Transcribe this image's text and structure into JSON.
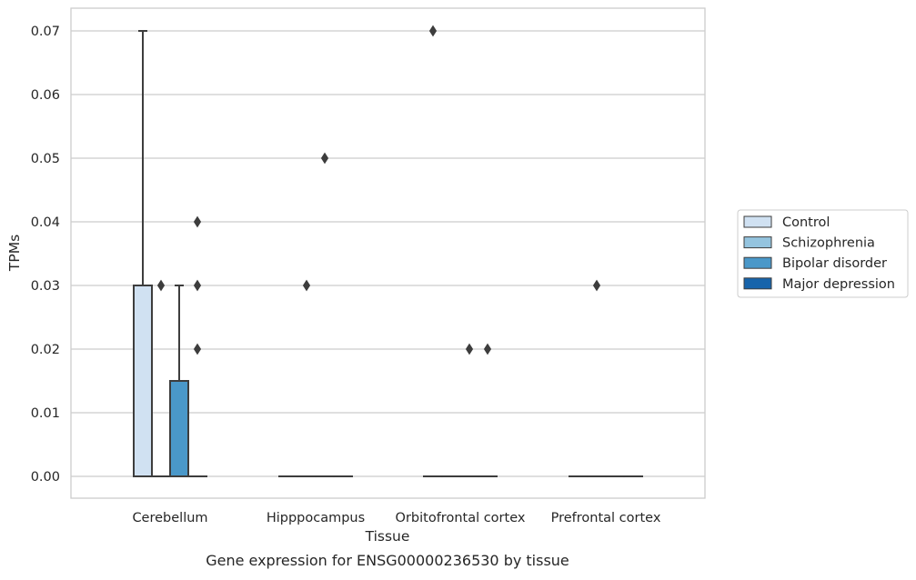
{
  "chart_data": {
    "type": "box",
    "title": "",
    "caption": "Gene expression for ENSG00000236530 by tissue",
    "xlabel": "Tissue",
    "ylabel": "TPMs",
    "ylim": [
      -0.0035,
      0.0735
    ],
    "yticks": [
      0.0,
      0.01,
      0.02,
      0.03,
      0.04,
      0.05,
      0.06,
      0.07
    ],
    "ytick_labels": [
      "0.00",
      "0.01",
      "0.02",
      "0.03",
      "0.04",
      "0.05",
      "0.06",
      "0.07"
    ],
    "categories": [
      "Cerebellum",
      "Hipppocampus",
      "Orbitofrontal cortex",
      "Prefrontal cortex"
    ],
    "grid": "horizontal",
    "legend_position": "right",
    "series": [
      {
        "name": "Control",
        "color": "#d0e1f2",
        "boxes": [
          {
            "q1": 0.0,
            "median": 0.0,
            "q3": 0.03,
            "whisker_low": 0.0,
            "whisker_high": 0.07,
            "outliers": []
          },
          {
            "q1": 0.0,
            "median": 0.0,
            "q3": 0.0,
            "whisker_low": 0.0,
            "whisker_high": 0.0,
            "outliers": []
          },
          {
            "q1": 0.0,
            "median": 0.0,
            "q3": 0.0,
            "whisker_low": 0.0,
            "whisker_high": 0.0,
            "outliers": [
              0.07
            ]
          },
          {
            "q1": 0.0,
            "median": 0.0,
            "q3": 0.0,
            "whisker_low": 0.0,
            "whisker_high": 0.0,
            "outliers": []
          }
        ]
      },
      {
        "name": "Schizophrenia",
        "color": "#94c4df",
        "boxes": [
          {
            "q1": 0.0,
            "median": 0.0,
            "q3": 0.0,
            "whisker_low": 0.0,
            "whisker_high": 0.0,
            "outliers": [
              0.03
            ]
          },
          {
            "q1": 0.0,
            "median": 0.0,
            "q3": 0.0,
            "whisker_low": 0.0,
            "whisker_high": 0.0,
            "outliers": [
              0.03
            ]
          },
          {
            "q1": 0.0,
            "median": 0.0,
            "q3": 0.0,
            "whisker_low": 0.0,
            "whisker_high": 0.0,
            "outliers": []
          },
          {
            "q1": 0.0,
            "median": 0.0,
            "q3": 0.0,
            "whisker_low": 0.0,
            "whisker_high": 0.0,
            "outliers": [
              0.03
            ]
          }
        ]
      },
      {
        "name": "Bipolar disorder",
        "color": "#4a98c9",
        "boxes": [
          {
            "q1": 0.0,
            "median": 0.0,
            "q3": 0.015,
            "whisker_low": 0.0,
            "whisker_high": 0.03,
            "outliers": []
          },
          {
            "q1": 0.0,
            "median": 0.0,
            "q3": 0.0,
            "whisker_low": 0.0,
            "whisker_high": 0.0,
            "outliers": [
              0.05
            ]
          },
          {
            "q1": 0.0,
            "median": 0.0,
            "q3": 0.0,
            "whisker_low": 0.0,
            "whisker_high": 0.0,
            "outliers": [
              0.02
            ]
          },
          {
            "q1": 0.0,
            "median": 0.0,
            "q3": 0.0,
            "whisker_low": 0.0,
            "whisker_high": 0.0,
            "outliers": []
          }
        ]
      },
      {
        "name": "Major depression",
        "color": "#1764ab",
        "boxes": [
          {
            "q1": 0.0,
            "median": 0.0,
            "q3": 0.0,
            "whisker_low": 0.0,
            "whisker_high": 0.0,
            "outliers": [
              0.02,
              0.03,
              0.04
            ]
          },
          {
            "q1": 0.0,
            "median": 0.0,
            "q3": 0.0,
            "whisker_low": 0.0,
            "whisker_high": 0.0,
            "outliers": []
          },
          {
            "q1": 0.0,
            "median": 0.0,
            "q3": 0.0,
            "whisker_low": 0.0,
            "whisker_high": 0.0,
            "outliers": [
              0.02
            ]
          },
          {
            "q1": 0.0,
            "median": 0.0,
            "q3": 0.0,
            "whisker_low": 0.0,
            "whisker_high": 0.0,
            "outliers": []
          }
        ]
      }
    ]
  }
}
